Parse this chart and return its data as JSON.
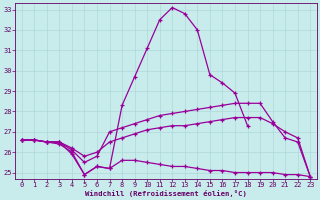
{
  "title": "Windchill (Refroidissement éolien,°C)",
  "background_color": "#c8ecec",
  "line_color": "#990099",
  "grid_color": "#b0d8d8",
  "text_color": "#660066",
  "xlim": [
    -0.5,
    23.5
  ],
  "ylim": [
    24.7,
    33.3
  ],
  "yticks": [
    25,
    26,
    27,
    28,
    29,
    30,
    31,
    32,
    33
  ],
  "xticks": [
    0,
    1,
    2,
    3,
    4,
    5,
    6,
    7,
    8,
    9,
    10,
    11,
    12,
    13,
    14,
    15,
    16,
    17,
    18,
    19,
    20,
    21,
    22,
    23
  ],
  "series": [
    {
      "x": [
        0,
        1,
        2,
        3,
        4,
        5,
        6,
        7,
        8,
        9,
        10,
        11,
        12,
        13,
        14,
        15,
        16,
        17,
        18,
        19,
        20,
        21,
        22,
        23
      ],
      "y": [
        26.6,
        26.6,
        26.5,
        26.5,
        25.9,
        24.9,
        25.3,
        25.2,
        28.3,
        29.7,
        31.1,
        32.5,
        33.1,
        32.8,
        32.0,
        29.8,
        29.4,
        28.9,
        27.3,
        null,
        null,
        null,
        null,
        null
      ]
    },
    {
      "x": [
        0,
        1,
        2,
        3,
        4,
        5,
        6,
        7,
        8,
        9,
        10,
        11,
        12,
        13,
        14,
        15,
        16,
        17,
        18,
        19,
        20,
        21,
        22,
        23
      ],
      "y": [
        26.6,
        26.6,
        26.5,
        26.5,
        26.1,
        25.5,
        25.8,
        27.0,
        27.2,
        27.4,
        27.6,
        27.8,
        27.9,
        28.0,
        28.1,
        28.2,
        28.3,
        28.4,
        28.4,
        28.4,
        27.5,
        26.7,
        26.5,
        24.8
      ]
    },
    {
      "x": [
        0,
        1,
        2,
        3,
        4,
        5,
        6,
        7,
        8,
        9,
        10,
        11,
        12,
        13,
        14,
        15,
        16,
        17,
        18,
        19,
        20,
        21,
        22,
        23
      ],
      "y": [
        26.6,
        26.6,
        26.5,
        26.5,
        26.2,
        25.8,
        26.0,
        26.5,
        26.7,
        26.9,
        27.1,
        27.2,
        27.3,
        27.3,
        27.4,
        27.5,
        27.6,
        27.7,
        27.7,
        27.7,
        27.4,
        27.0,
        26.7,
        24.8
      ]
    },
    {
      "x": [
        0,
        1,
        2,
        3,
        4,
        5,
        6,
        7,
        8,
        9,
        10,
        11,
        12,
        13,
        14,
        15,
        16,
        17,
        18,
        19,
        20,
        21,
        22,
        23
      ],
      "y": [
        26.6,
        26.6,
        26.5,
        26.4,
        26.0,
        24.9,
        25.3,
        25.2,
        25.6,
        25.6,
        25.5,
        25.4,
        25.3,
        25.3,
        25.2,
        25.1,
        25.1,
        25.0,
        25.0,
        25.0,
        25.0,
        24.9,
        24.9,
        24.8
      ]
    }
  ]
}
